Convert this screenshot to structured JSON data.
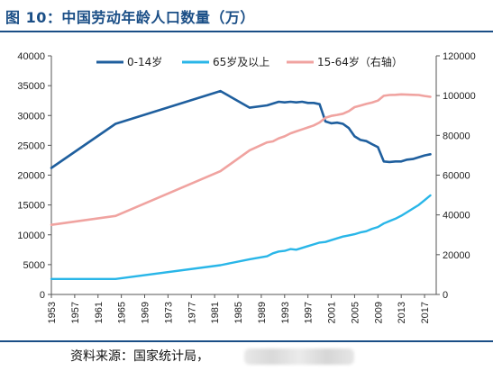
{
  "figure": {
    "title": "图 10：中国劳动年龄人口数量（万）",
    "source": "资料来源：国家统计局，"
  },
  "colors": {
    "brand": "#1a4e86",
    "s0": "#1f5f9e",
    "s1": "#29b6e8",
    "s2": "#f0a3a0",
    "axis": "#555555"
  },
  "chart_data": {
    "type": "line",
    "title": "图 10：中国劳动年龄人口数量（万）",
    "x_ticks": [
      1953,
      1957,
      1961,
      1965,
      1969,
      1973,
      1977,
      1981,
      1985,
      1989,
      1993,
      1997,
      2001,
      2005,
      2009,
      2013,
      2017
    ],
    "xlim": [
      1953,
      2019
    ],
    "y_left": {
      "lim": [
        0,
        40000
      ],
      "ticks": [
        0,
        5000,
        10000,
        15000,
        20000,
        25000,
        30000,
        35000,
        40000
      ]
    },
    "y_right": {
      "lim": [
        0,
        120000
      ],
      "ticks": [
        0,
        20000,
        40000,
        60000,
        80000,
        100000,
        120000
      ]
    },
    "legend_position": "top",
    "grid": false,
    "series": [
      {
        "name": "0-14岁",
        "axis": "left",
        "x": [
          1953,
          1964,
          1982,
          1987,
          1990,
          1991,
          1992,
          1993,
          1994,
          1995,
          1996,
          1997,
          1998,
          1999,
          2000,
          2001,
          2002,
          2003,
          2004,
          2005,
          2006,
          2007,
          2008,
          2009,
          2010,
          2011,
          2012,
          2013,
          2014,
          2015,
          2016,
          2017,
          2018
        ],
        "y": [
          21200,
          28600,
          34100,
          31300,
          31700,
          32000,
          32300,
          32200,
          32300,
          32200,
          32300,
          32100,
          32100,
          31900,
          29000,
          28700,
          28800,
          28600,
          27900,
          26500,
          25900,
          25700,
          25200,
          24700,
          22300,
          22200,
          22300,
          22300,
          22600,
          22700,
          23000,
          23300,
          23500
        ]
      },
      {
        "name": "65岁及以上",
        "axis": "left",
        "x": [
          1953,
          1964,
          1982,
          1987,
          1990,
          1991,
          1992,
          1993,
          1994,
          1995,
          1996,
          1997,
          1998,
          1999,
          2000,
          2001,
          2002,
          2003,
          2004,
          2005,
          2006,
          2007,
          2008,
          2009,
          2010,
          2011,
          2012,
          2013,
          2014,
          2015,
          2016,
          2017,
          2018
        ],
        "y": [
          2600,
          2600,
          4900,
          5900,
          6400,
          6900,
          7200,
          7300,
          7600,
          7500,
          7800,
          8100,
          8400,
          8700,
          8800,
          9100,
          9400,
          9700,
          9900,
          10100,
          10400,
          10600,
          11000,
          11300,
          11900,
          12300,
          12700,
          13200,
          13800,
          14400,
          15000,
          15800,
          16600
        ]
      },
      {
        "name": "15-64岁（右轴）",
        "axis": "right",
        "x": [
          1953,
          1964,
          1982,
          1987,
          1990,
          1991,
          1992,
          1993,
          1994,
          1995,
          1996,
          1997,
          1998,
          1999,
          2000,
          2001,
          2002,
          2003,
          2004,
          2005,
          2006,
          2007,
          2008,
          2009,
          2010,
          2011,
          2012,
          2013,
          2014,
          2015,
          2016,
          2017,
          2018
        ],
        "y": [
          35000,
          39500,
          62000,
          72500,
          76500,
          77000,
          78500,
          79500,
          81000,
          82000,
          83000,
          84000,
          85000,
          86500,
          88900,
          89800,
          90300,
          90900,
          92200,
          94200,
          95000,
          95800,
          96500,
          97500,
          99900,
          100300,
          100400,
          100600,
          100500,
          100400,
          100300,
          99800,
          99400
        ]
      }
    ]
  }
}
